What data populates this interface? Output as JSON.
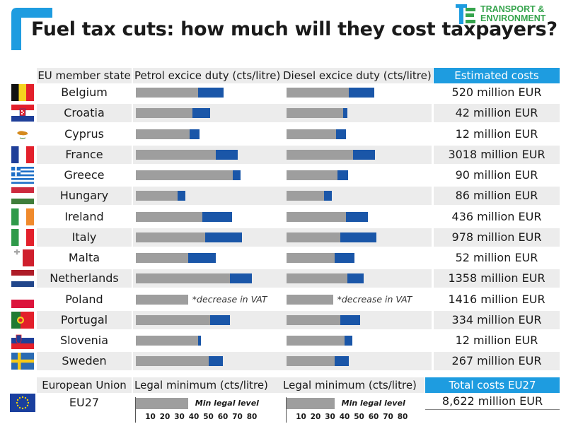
{
  "title": "Fuel tax cuts: how much will they cost taxpayers?",
  "logo": {
    "line1": "TRANSPORT &",
    "line2": "ENVIRONMENT",
    "icon": "te-logo-icon",
    "color": "#36a44d"
  },
  "accent": "#1e9ce0",
  "colors": {
    "gray_bar": "#9e9e9e",
    "blue_bar": "#1a56a8",
    "header_blue": "#1e9ce0"
  },
  "headers": {
    "member_state": "EU member state",
    "petrol": "Petrol excice duty (cts/litre)",
    "diesel": "Diesel excice duty (cts/litre)",
    "costs": "Estimated costs"
  },
  "footer": {
    "eu_label": "European Union",
    "legal_min_petrol": "Legal minimum (cts/litre)",
    "legal_min_diesel": "Legal minimum (cts/litre)",
    "total_label": "Total costs EU27",
    "eu27": "EU27",
    "total_value": "8,622 million EUR",
    "min_legal_level": "Min legal level",
    "petrol_min": 36,
    "diesel_min": 33
  },
  "chart_data": {
    "type": "bar",
    "title": "Fuel tax cuts: how much will they cost taxpayers?",
    "x_ticks": [
      10,
      20,
      30,
      40,
      50,
      60,
      70,
      80
    ],
    "xlim": [
      0,
      84
    ],
    "series_meaning": "gray = duty after cut, blue = cut amount (cts/litre)",
    "rows": [
      {
        "country": "Belgium",
        "flag": "belgium-flag-icon",
        "petrol_after": 43,
        "petrol_cut": 17.5,
        "diesel_after": 43,
        "diesel_cut": 17.5,
        "cost": "520 million EUR"
      },
      {
        "country": "Croatia",
        "flag": "croatia-flag-icon",
        "petrol_after": 39,
        "petrol_cut": 12,
        "diesel_after": 39,
        "diesel_cut": 3,
        "cost": "42 million EUR"
      },
      {
        "country": "Cyprus",
        "flag": "cyprus-flag-icon",
        "petrol_after": 37,
        "petrol_cut": 7,
        "diesel_after": 34,
        "diesel_cut": 7,
        "cost": "12 million EUR"
      },
      {
        "country": "France",
        "flag": "france-flag-icon",
        "petrol_after": 55,
        "petrol_cut": 15,
        "diesel_after": 46,
        "diesel_cut": 15,
        "cost": "3018 million EUR"
      },
      {
        "country": "Greece",
        "flag": "greece-flag-icon",
        "petrol_after": 67,
        "petrol_cut": 5,
        "diesel_after": 35,
        "diesel_cut": 7.5,
        "cost": "90 million EUR"
      },
      {
        "country": "Hungary",
        "flag": "hungary-flag-icon",
        "petrol_after": 29,
        "petrol_cut": 5,
        "diesel_after": 26,
        "diesel_cut": 5,
        "cost": "86 million EUR"
      },
      {
        "country": "Ireland",
        "flag": "ireland-flag-icon",
        "petrol_after": 46,
        "petrol_cut": 20.5,
        "diesel_after": 41,
        "diesel_cut": 15,
        "cost": "436 million EUR"
      },
      {
        "country": "Italy",
        "flag": "italy-flag-icon",
        "petrol_after": 48,
        "petrol_cut": 25,
        "diesel_after": 37,
        "diesel_cut": 25,
        "cost": "978 million EUR"
      },
      {
        "country": "Malta",
        "flag": "malta-flag-icon",
        "petrol_after": 36,
        "petrol_cut": 19,
        "diesel_after": 33,
        "diesel_cut": 14,
        "cost": "52 million EUR"
      },
      {
        "country": "Netherlands",
        "flag": "netherlands-flag-icon",
        "petrol_after": 65,
        "petrol_cut": 15,
        "diesel_after": 42,
        "diesel_cut": 11,
        "cost": "1358 million EUR"
      },
      {
        "country": "Poland",
        "flag": "poland-flag-icon",
        "petrol_after": 36,
        "petrol_cut": 0,
        "diesel_after": 32,
        "diesel_cut": 0,
        "cost": "1416 million EUR",
        "note": "*decrease in VAT"
      },
      {
        "country": "Portugal",
        "flag": "portugal-flag-icon",
        "petrol_after": 51,
        "petrol_cut": 14,
        "diesel_after": 37,
        "diesel_cut": 13.5,
        "cost": "334 million EUR"
      },
      {
        "country": "Slovenia",
        "flag": "slovenia-flag-icon",
        "petrol_after": 43,
        "petrol_cut": 2,
        "diesel_after": 40,
        "diesel_cut": 5.5,
        "cost": "12 million EUR"
      },
      {
        "country": "Sweden",
        "flag": "sweden-flag-icon",
        "petrol_after": 50,
        "petrol_cut": 10,
        "diesel_after": 33,
        "diesel_cut": 10,
        "cost": "267 million EUR"
      }
    ]
  }
}
